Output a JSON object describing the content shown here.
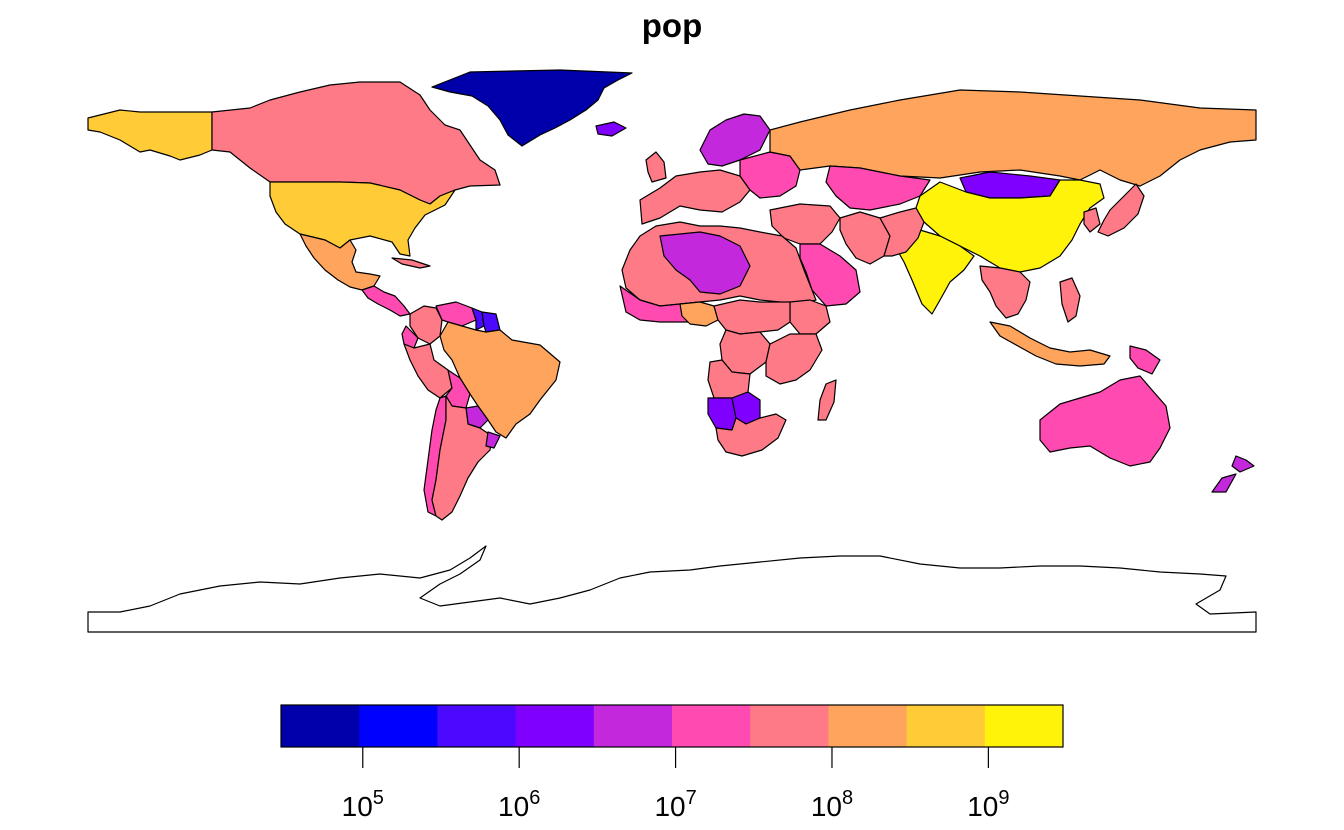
{
  "map": {
    "title": "pop",
    "projection": "equirectangular",
    "variable": "population",
    "colors": {
      "bins": [
        "#0000AA",
        "#0000FF",
        "#4B0AFF",
        "#8000FF",
        "#C428DD",
        "#FF4AB1",
        "#FF7A87",
        "#FFA45C",
        "#FFCB36",
        "#FFF30A"
      ],
      "outline": "#000000",
      "no_data": "#ffffff"
    },
    "legend": {
      "placement": "bottom",
      "scale": "log10",
      "range": [
        30000,
        3000000000
      ],
      "ticks": [
        {
          "base": "10",
          "exp": "5",
          "value": 100000
        },
        {
          "base": "10",
          "exp": "6",
          "value": 1000000
        },
        {
          "base": "10",
          "exp": "7",
          "value": 10000000
        },
        {
          "base": "10",
          "exp": "8",
          "value": 100000000
        },
        {
          "base": "10",
          "exp": "9",
          "value": 1000000000
        }
      ]
    },
    "regions": [
      {
        "name": "Greenland",
        "bin": 0
      },
      {
        "name": "Alaska",
        "bin": 8
      },
      {
        "name": "Canada",
        "bin": 6
      },
      {
        "name": "United States",
        "bin": 8
      },
      {
        "name": "Mexico",
        "bin": 7
      },
      {
        "name": "Central America",
        "bin": 5
      },
      {
        "name": "Cuba",
        "bin": 6
      },
      {
        "name": "Colombia",
        "bin": 6
      },
      {
        "name": "Venezuela",
        "bin": 5
      },
      {
        "name": "Guyana",
        "bin": 2
      },
      {
        "name": "Suriname",
        "bin": 2
      },
      {
        "name": "Ecuador",
        "bin": 5
      },
      {
        "name": "Peru",
        "bin": 6
      },
      {
        "name": "Brazil",
        "bin": 7
      },
      {
        "name": "Bolivia",
        "bin": 5
      },
      {
        "name": "Paraguay",
        "bin": 4
      },
      {
        "name": "Chile",
        "bin": 5
      },
      {
        "name": "Argentina",
        "bin": 6
      },
      {
        "name": "Uruguay",
        "bin": 4
      },
      {
        "name": "Iceland",
        "bin": 3
      },
      {
        "name": "United Kingdom",
        "bin": 6
      },
      {
        "name": "Scandinavia",
        "bin": 4
      },
      {
        "name": "Western Europe",
        "bin": 6
      },
      {
        "name": "Eastern Europe",
        "bin": 5
      },
      {
        "name": "Russia",
        "bin": 7
      },
      {
        "name": "Kazakhstan",
        "bin": 5
      },
      {
        "name": "Mongolia",
        "bin": 3
      },
      {
        "name": "China",
        "bin": 9
      },
      {
        "name": "India",
        "bin": 9
      },
      {
        "name": "Middle East",
        "bin": 6
      },
      {
        "name": "Saudi Arabia",
        "bin": 5
      },
      {
        "name": "Iran",
        "bin": 6
      },
      {
        "name": "Afghanistan/Pakistan",
        "bin": 6
      },
      {
        "name": "Japan",
        "bin": 6
      },
      {
        "name": "Korea",
        "bin": 6
      },
      {
        "name": "Southeast Asia",
        "bin": 6
      },
      {
        "name": "Indonesia",
        "bin": 7
      },
      {
        "name": "Philippines",
        "bin": 6
      },
      {
        "name": "Papua New Guinea",
        "bin": 5
      },
      {
        "name": "Australia",
        "bin": 5
      },
      {
        "name": "New Zealand",
        "bin": 4
      },
      {
        "name": "North Africa",
        "bin": 6
      },
      {
        "name": "Algeria/Libya",
        "bin": 4
      },
      {
        "name": "West Africa",
        "bin": 5
      },
      {
        "name": "Nigeria",
        "bin": 7
      },
      {
        "name": "Ethiopia",
        "bin": 6
      },
      {
        "name": "Central Africa",
        "bin": 6
      },
      {
        "name": "DR Congo",
        "bin": 6
      },
      {
        "name": "East Africa",
        "bin": 6
      },
      {
        "name": "Angola",
        "bin": 6
      },
      {
        "name": "Namibia",
        "bin": 3
      },
      {
        "name": "Botswana",
        "bin": 3
      },
      {
        "name": "South Africa",
        "bin": 6
      },
      {
        "name": "Madagascar",
        "bin": 6
      },
      {
        "name": "Antarctica",
        "bin": null
      }
    ]
  }
}
